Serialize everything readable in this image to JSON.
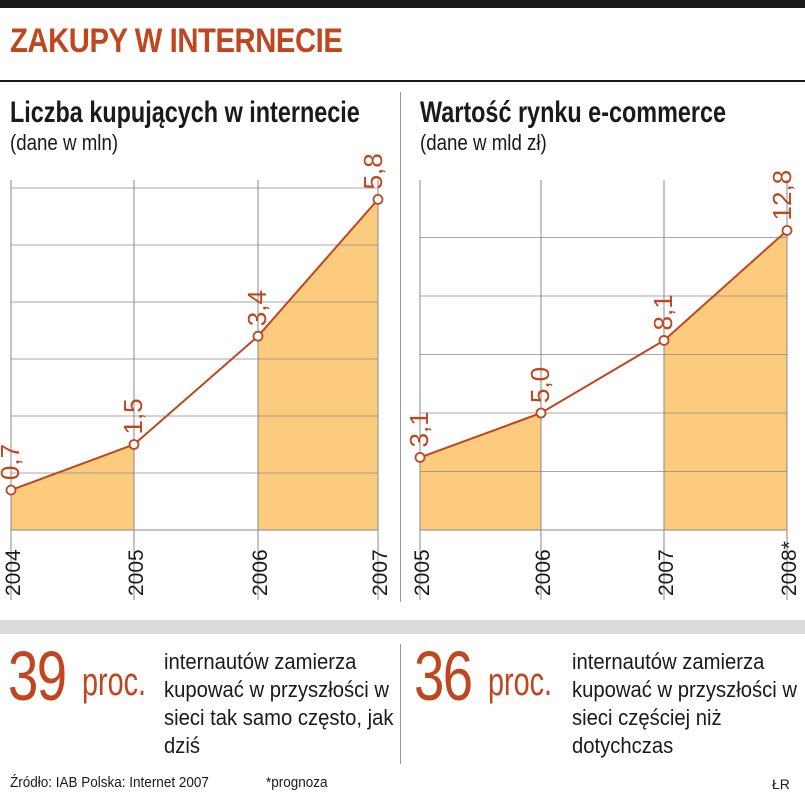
{
  "header": {
    "title": "ZAKUPY W INTERNECIE"
  },
  "colors": {
    "accent": "#c0461f",
    "fill": "#fccb7e",
    "grid": "#8a8a8a"
  },
  "chart_data": [
    {
      "type": "area",
      "title": "Liczba kupujących w internecie",
      "subtitle": "(dane w mln)",
      "categories": [
        "2004",
        "2005",
        "2006",
        "2007"
      ],
      "values": [
        0.7,
        1.5,
        3.4,
        5.8
      ],
      "value_labels": [
        "0,7",
        "1,5",
        "3,4",
        "5,8"
      ],
      "ylim": [
        0,
        6
      ],
      "grid": true
    },
    {
      "type": "area",
      "title": "Wartość rynku e-commerce",
      "subtitle": "(dane w mld zł)",
      "categories": [
        "2005",
        "2006",
        "2007",
        "2008*"
      ],
      "values": [
        3.1,
        5.0,
        8.1,
        12.8
      ],
      "value_labels": [
        "3,1",
        "5,0",
        "8,1",
        "12,8"
      ],
      "ylim": [
        0,
        15
      ],
      "grid": true
    }
  ],
  "stats": [
    {
      "number": "39",
      "unit": "proc.",
      "text": "internautów zamierza kupować w przyszłości w sieci tak samo często, jak dziś"
    },
    {
      "number": "36",
      "unit": "proc.",
      "text": "internautów zamierza kupować w przyszłości w sieci częściej niż dotychczas"
    }
  ],
  "footer": {
    "source": "Źródło: IAB Polska: Internet 2007",
    "note": "*prognoza",
    "author": "ŁR"
  }
}
